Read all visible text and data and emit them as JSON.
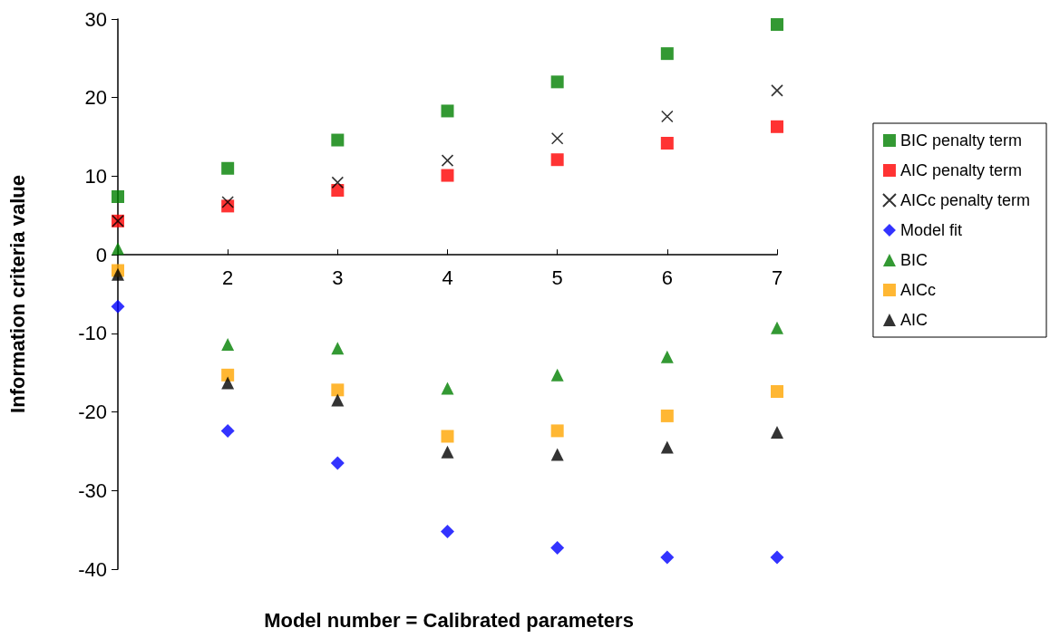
{
  "chart_data": {
    "type": "scatter",
    "xlabel": "Model number = Calibrated parameters",
    "ylabel": "Information criteria value",
    "x": [
      1,
      2,
      3,
      4,
      5,
      6,
      7
    ],
    "xlim": [
      1,
      7
    ],
    "xticks": [
      {
        "value": 1,
        "label": null
      },
      2,
      3,
      4,
      5,
      6,
      7
    ],
    "ylim": [
      -40,
      30
    ],
    "yticks": [
      -40,
      -30,
      -20,
      -10,
      0,
      10,
      20,
      30
    ],
    "legend": "right",
    "series": [
      {
        "name": "BIC penalty term",
        "color": "#008000",
        "marker": "square",
        "values": [
          7.4,
          11.0,
          14.6,
          18.3,
          22.0,
          25.6,
          29.3
        ]
      },
      {
        "name": "AIC penalty term",
        "color": "#ff0000",
        "marker": "square",
        "values": [
          4.3,
          6.2,
          8.2,
          10.1,
          12.1,
          14.2,
          16.3
        ]
      },
      {
        "name": "AICc penalty term",
        "color": "#000000",
        "marker": "cross",
        "values": [
          4.3,
          6.7,
          9.2,
          12.0,
          14.8,
          17.6,
          20.9
        ]
      },
      {
        "name": "Model fit",
        "color": "#0000ff",
        "marker": "diamond",
        "values": [
          -6.6,
          -22.4,
          -26.5,
          -35.2,
          -37.3,
          -38.5,
          -38.5
        ]
      },
      {
        "name": "BIC",
        "color": "#008000",
        "marker": "triangle",
        "values": [
          0.8,
          -11.4,
          -11.9,
          -17.0,
          -15.3,
          -13.0,
          -9.3
        ]
      },
      {
        "name": "AICc",
        "color": "#ffa500",
        "marker": "square",
        "values": [
          -2.0,
          -15.3,
          -17.2,
          -23.1,
          -22.4,
          -20.5,
          -17.4
        ]
      },
      {
        "name": "AIC",
        "color": "#000000",
        "marker": "triangle",
        "values": [
          -2.5,
          -16.3,
          -18.5,
          -25.1,
          -25.4,
          -24.5,
          -22.6
        ]
      }
    ]
  }
}
